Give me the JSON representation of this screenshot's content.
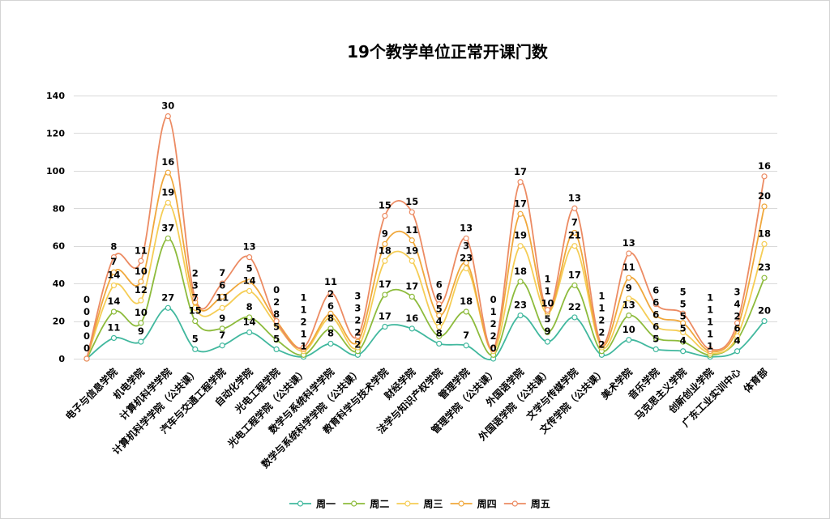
{
  "chart_data": {
    "type": "line",
    "stacked": true,
    "smooth": true,
    "markers": "circle",
    "data_labels": true,
    "title": "19个教学单位正常开课门数",
    "xlabel": "",
    "ylabel": "",
    "ylim": [
      0,
      140
    ],
    "yticks": [
      0,
      20,
      40,
      60,
      80,
      100,
      120,
      140
    ],
    "grid": "horizontal",
    "legend": "bottom",
    "categories": [
      "",
      "电子与信息学院",
      "机电学院",
      "计算机科学学院",
      "计算机科学学院（公共课）",
      "汽车与交通工程学院",
      "自动化学院",
      "光电工程学院",
      "光电工程学院（公共课）",
      "数学与系统科学学院",
      "数学与系统科学学院（公共课）",
      "教育科学与技术学院",
      "财经学院",
      "法学与知识产权学院",
      "管理学院",
      "管理学院（公共课）",
      "外国语学院",
      "外国语学院（公共课）",
      "文学与传媒学院",
      "文传学院（公共课）",
      "美术学院",
      "音乐学院",
      "马克思主义学院",
      "创新创业学院",
      "广东工业实训中心",
      "体育部"
    ],
    "series": [
      {
        "name": "周一",
        "color": "#41b89e",
        "values": [
          0,
          11,
          9,
          27,
          5,
          7,
          14,
          5,
          1,
          8,
          2,
          17,
          16,
          8,
          7,
          0,
          23,
          9,
          22,
          2,
          10,
          5,
          4,
          1,
          4,
          20
        ]
      },
      {
        "name": "周二",
        "color": "#8dbb3c",
        "values": [
          0,
          14,
          10,
          37,
          15,
          9,
          8,
          5,
          1,
          8,
          2,
          17,
          17,
          4,
          18,
          2,
          18,
          5,
          17,
          2,
          13,
          6,
          5,
          1,
          6,
          23
        ]
      },
      {
        "name": "周三",
        "color": "#f5cd55",
        "values": [
          0,
          14,
          12,
          19,
          7,
          11,
          14,
          8,
          2,
          6,
          2,
          18,
          19,
          5,
          23,
          2,
          19,
          10,
          21,
          2,
          9,
          6,
          5,
          1,
          2,
          18
        ]
      },
      {
        "name": "周四",
        "color": "#f0a83c",
        "values": [
          0,
          7,
          10,
          16,
          3,
          6,
          5,
          2,
          1,
          2,
          3,
          9,
          11,
          6,
          3,
          1,
          17,
          1,
          7,
          1,
          11,
          6,
          5,
          1,
          4,
          20
        ]
      },
      {
        "name": "周五",
        "color": "#ec8b63",
        "values": [
          0,
          8,
          11,
          30,
          2,
          7,
          13,
          0,
          1,
          11,
          3,
          15,
          15,
          6,
          13,
          0,
          17,
          1,
          13,
          1,
          13,
          6,
          5,
          1,
          3,
          16
        ]
      }
    ]
  }
}
